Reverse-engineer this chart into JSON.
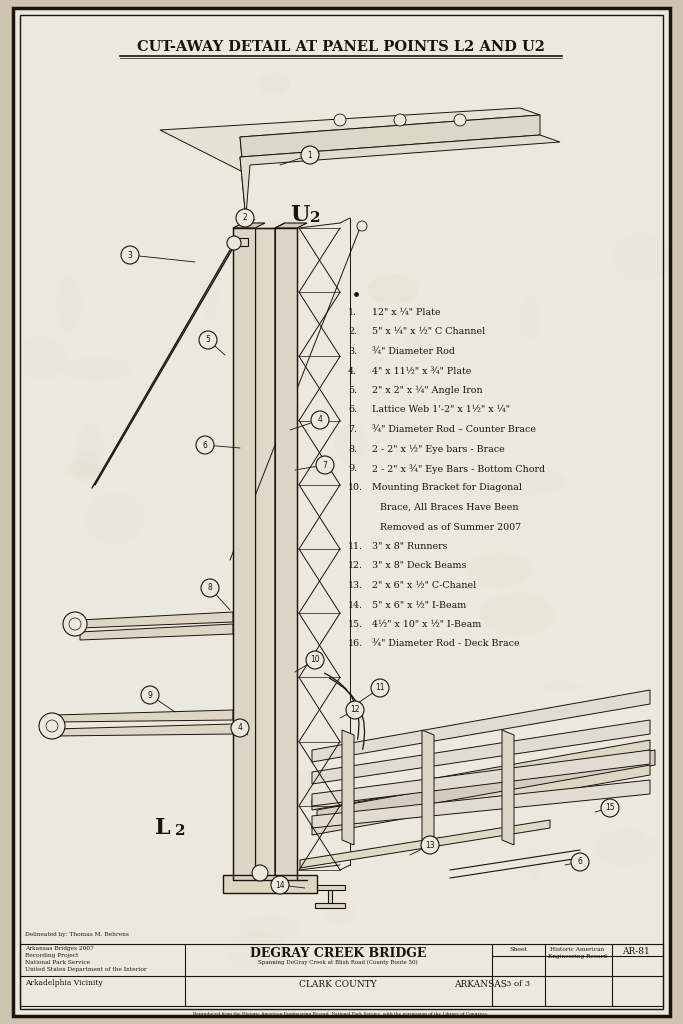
{
  "title": "Cut-Away Detail at Panel Points L2 and U2",
  "bg_color": "#ccc4b0",
  "paper_color": "#ede8dc",
  "line_color": "#1a140a",
  "legend_items_num": [
    "1.",
    "2.",
    "3.",
    "4.",
    "5.",
    "6.",
    "7.",
    "8.",
    "9.",
    "10.",
    "",
    "",
    "11.",
    "12.",
    "13.",
    "14.",
    "15.",
    "16."
  ],
  "legend_items_text": [
    "12\" x ¼\" Plate",
    "5\" x ¼\" x ½\" C Channel",
    "¾\" Diameter Rod",
    "4\" x 11½\" x ¾\" Plate",
    "2\" x 2\" x ¼\" Angle Iron",
    "Lattice Web 1'-2\" x 1½\" x ¼\"",
    "¾\" Diameter Rod – Counter Brace",
    "2 - 2\" x ½\" Eye bars - Brace",
    "2 - 2\" x ¾\" Eye Bars - Bottom Chord",
    "Mounting Bracket for Diagonal",
    "Brace, All Braces Have Been",
    "Removed as of Summer 2007",
    "3\" x 8\" Runners",
    "3\" x 8\" Deck Beams",
    "2\" x 6\" x ½\" C-Chanel",
    "5\" x 6\" x ½\" I-Beam",
    "4½\" x 10\" x ½\" I-Beam",
    "¾\" Diameter Rod - Deck Brace"
  ],
  "footer_left1": "Arkansas Bridges 2007",
  "footer_left2": "Recording Project",
  "footer_left3": "National Park Service",
  "footer_left4": "United States Department of the Interior",
  "footer_loc": "Arkadelphia Vicinity",
  "footer_title": "DeGray Creek Bridge",
  "footer_subtitle": "Spanning DeGray Creek at Blish Road (County Route 50)",
  "footer_county": "Clark County",
  "footer_state": "Arkansas",
  "footer_sheet": "3 of 3",
  "footer_record_line1": "Historic American",
  "footer_record_line2": "Engineering Record",
  "footer_num": "AR-81",
  "delineated": "Delineated by: Thomas M. Behrens"
}
